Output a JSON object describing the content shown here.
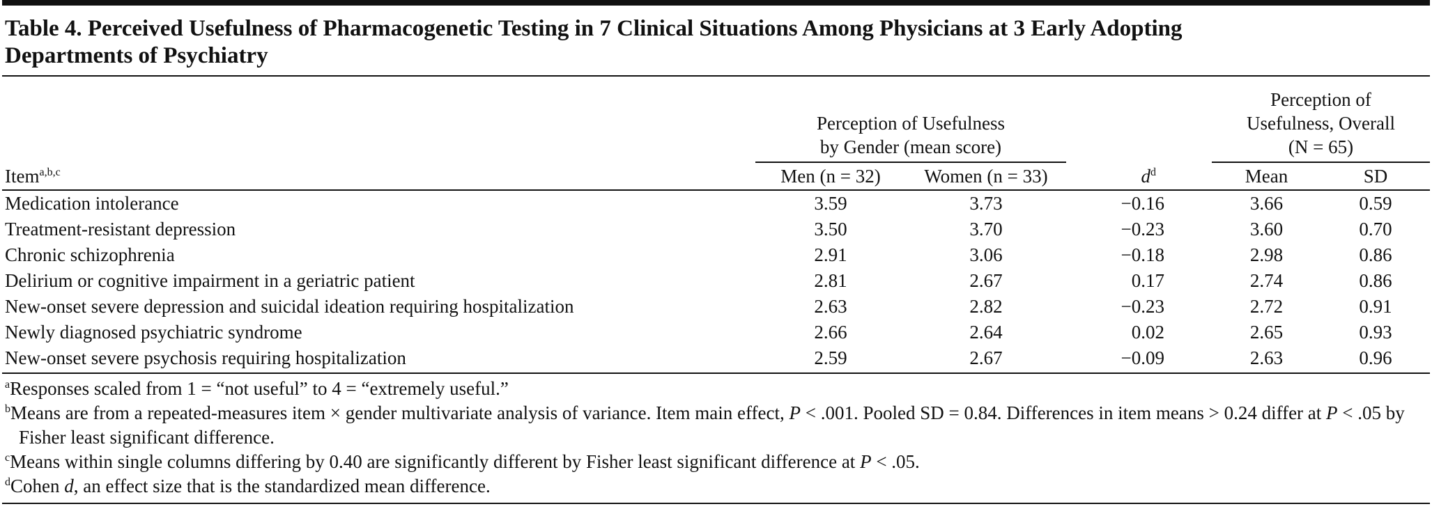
{
  "title": [
    "Table 4. Perceived Usefulness of Pharmacogenetic Testing in 7 Clinical Situations Among Physicians at 3 Early Adopting",
    "Departments of Psychiatry"
  ],
  "table": {
    "header": {
      "item": "Item",
      "item_sup": "a,b,c",
      "gender_group": [
        "Perception of Usefulness",
        "by Gender (mean score)"
      ],
      "overall_group": [
        "Perception of",
        "Usefulness, Overall",
        "(N = 65)"
      ],
      "men": "Men (n = 32)",
      "women": "Women (n = 33)",
      "d": "d",
      "d_sup": "d",
      "mean": "Mean",
      "sd": "SD"
    },
    "rows": [
      [
        "Medication intolerance",
        "3.59",
        "3.73",
        "−0.16",
        "3.66",
        "0.59"
      ],
      [
        "Treatment-resistant depression",
        "3.50",
        "3.70",
        "−0.23",
        "3.60",
        "0.70"
      ],
      [
        "Chronic schizophrenia",
        "2.91",
        "3.06",
        "−0.18",
        "2.98",
        "0.86"
      ],
      [
        "Delirium or cognitive impairment in a geriatric patient",
        "2.81",
        "2.67",
        "0.17",
        "2.74",
        "0.86"
      ],
      [
        "New-onset severe depression and suicidal ideation requiring hospitalization",
        "2.63",
        "2.82",
        "−0.23",
        "2.72",
        "0.91"
      ],
      [
        "Newly diagnosed psychiatric syndrome",
        "2.66",
        "2.64",
        "0.02",
        "2.65",
        "0.93"
      ],
      [
        "New-onset severe psychosis requiring hospitalization",
        "2.59",
        "2.67",
        "−0.09",
        "2.63",
        "0.96"
      ]
    ]
  },
  "footnotes": [
    {
      "mark": "a",
      "parts": [
        "Responses scaled from 1 = “not useful” to 4 = “extremely useful.”"
      ]
    },
    {
      "mark": "b",
      "parts": [
        "Means are from a repeated-measures item × gender multivariate analysis of variance. Item main effect, ",
        {
          "text": "P",
          "italic": true
        },
        " < .001. Pooled SD = 0.84. Differences in item means > 0.24 differ at ",
        {
          "text": "P",
          "italic": true
        },
        " < .05 by Fisher least significant difference."
      ]
    },
    {
      "mark": "c",
      "parts": [
        "Means within single columns differing by 0.40 are significantly different by Fisher least significant difference at ",
        {
          "text": "P",
          "italic": true
        },
        " < .05."
      ]
    },
    {
      "mark": "d",
      "parts": [
        "Cohen ",
        {
          "text": "d",
          "italic": true
        },
        ", an effect size that is the standardized mean difference."
      ]
    }
  ]
}
